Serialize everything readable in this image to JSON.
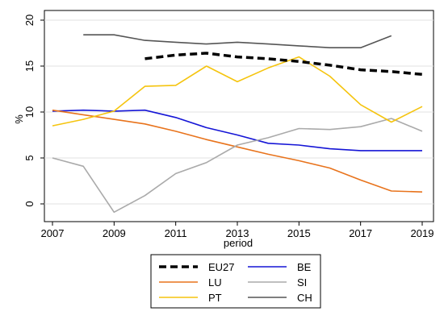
{
  "chart_data": {
    "type": "line",
    "xlabel": "period",
    "ylabel": "%",
    "xlim": [
      2007,
      2019
    ],
    "ylim": [
      -1,
      21
    ],
    "x_ticks": [
      2007,
      2009,
      2011,
      2013,
      2015,
      2017,
      2019
    ],
    "y_ticks": [
      0,
      5,
      10,
      15,
      20
    ],
    "grid": "horizontal",
    "legend_position": "bottom",
    "series": [
      {
        "name": "EU27",
        "color": "#000000",
        "style": "dashed",
        "x": [
          2010,
          2011,
          2012,
          2013,
          2014,
          2015,
          2016,
          2017,
          2018,
          2019
        ],
        "y": [
          15.8,
          16.2,
          16.4,
          16.0,
          15.8,
          15.5,
          15.1,
          14.6,
          14.4,
          14.1
        ]
      },
      {
        "name": "BE",
        "color": "#1515d6",
        "style": "solid",
        "x": [
          2007,
          2008,
          2009,
          2010,
          2011,
          2012,
          2013,
          2014,
          2015,
          2016,
          2017,
          2018,
          2019
        ],
        "y": [
          10.1,
          10.2,
          10.1,
          10.2,
          9.4,
          8.3,
          7.5,
          6.6,
          6.4,
          6.0,
          5.8,
          5.8,
          5.8
        ]
      },
      {
        "name": "LU",
        "color": "#e8731c",
        "style": "solid",
        "x": [
          2007,
          2008,
          2009,
          2010,
          2011,
          2012,
          2013,
          2014,
          2015,
          2016,
          2017,
          2018,
          2019
        ],
        "y": [
          10.2,
          9.7,
          9.2,
          8.7,
          7.9,
          7.0,
          6.2,
          5.4,
          4.7,
          3.9,
          2.6,
          1.4,
          1.3
        ]
      },
      {
        "name": "SI",
        "color": "#aaaaaa",
        "style": "solid",
        "x": [
          2007,
          2008,
          2009,
          2010,
          2011,
          2012,
          2013,
          2014,
          2015,
          2016,
          2017,
          2018,
          2019
        ],
        "y": [
          5.0,
          4.1,
          -0.9,
          0.9,
          3.3,
          4.5,
          6.4,
          7.2,
          8.2,
          8.1,
          8.4,
          9.3,
          7.9
        ]
      },
      {
        "name": "PT",
        "color": "#f5c40e",
        "style": "solid",
        "x": [
          2007,
          2008,
          2009,
          2010,
          2011,
          2012,
          2013,
          2014,
          2015,
          2016,
          2017,
          2018,
          2019
        ],
        "y": [
          8.5,
          9.2,
          10.1,
          12.8,
          12.9,
          15.0,
          13.3,
          14.8,
          16.0,
          13.9,
          10.8,
          8.9,
          10.6
        ]
      },
      {
        "name": "CH",
        "color": "#555555",
        "style": "solid",
        "x": [
          2008,
          2009,
          2010,
          2011,
          2012,
          2013,
          2014,
          2015,
          2016,
          2017,
          2018
        ],
        "y": [
          18.4,
          18.4,
          17.8,
          17.6,
          17.4,
          17.6,
          17.4,
          17.2,
          17.0,
          17.0,
          18.3
        ]
      }
    ],
    "legend_order": [
      "EU27",
      "BE",
      "LU",
      "SI",
      "PT",
      "CH"
    ]
  }
}
